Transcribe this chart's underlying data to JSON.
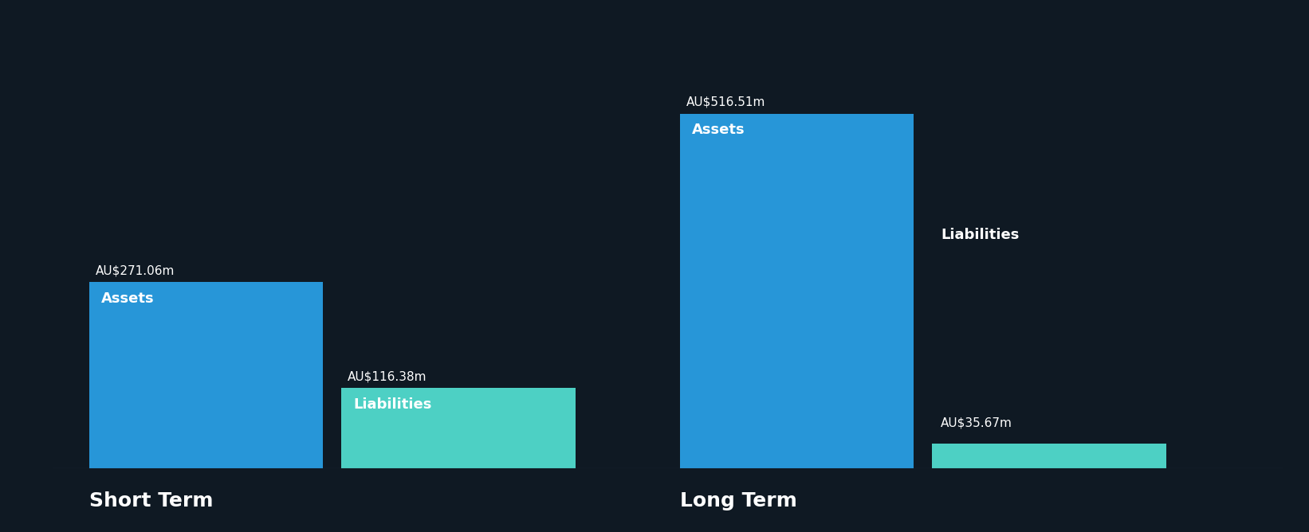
{
  "background_color": "#0f1923",
  "groups": [
    {
      "label": "Short Term",
      "assets_value": 271.06,
      "assets_label": "AU$271.06m",
      "liabilities_value": 116.38,
      "liabilities_label": "AU$116.38m"
    },
    {
      "label": "Long Term",
      "assets_value": 516.51,
      "assets_label": "AU$516.51m",
      "liabilities_value": 35.67,
      "liabilities_label": "AU$35.67m"
    }
  ],
  "assets_color": "#2796D8",
  "liabilities_color": "#4DD0C4",
  "text_color": "#ffffff",
  "label_assets": "Assets",
  "label_liabilities": "Liabilities",
  "group_label_fontsize": 18,
  "bar_label_fontsize": 11,
  "inner_label_fontsize": 13,
  "max_value": 516.51
}
